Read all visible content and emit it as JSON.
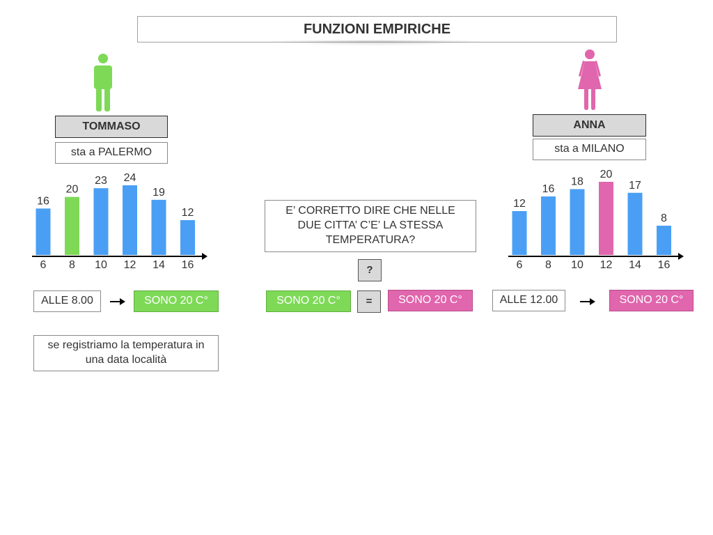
{
  "title": "FUNZIONI EMPIRICHE",
  "left": {
    "name": "TOMMASO",
    "city": "sta a PALERMO",
    "time": "ALLE 8.00",
    "result": "SONO 20 C°",
    "note": "se registriamo la temperatura in una data località",
    "figure_color": "#7ed957"
  },
  "right": {
    "name": "ANNA",
    "city": "sta a MILANO",
    "time": "ALLE 12.00",
    "result": "SONO 20 C°",
    "figure_color": "#e066ad"
  },
  "center": {
    "question": "E’ CORRETTO DIRE CHE NELLE DUE CITTA’ C’E’ LA STESSA TEMPERATURA?",
    "question_mark": "?",
    "left_value": "SONO 20 C°",
    "equals": "=",
    "right_value": "SONO 20 C°"
  },
  "colors": {
    "bar": "#4a9ff5",
    "highlight_left": "#7ed957",
    "highlight_right": "#e066ad"
  },
  "chart_data": [
    {
      "type": "bar",
      "categories": [
        "6",
        "8",
        "10",
        "12",
        "14",
        "16"
      ],
      "values": [
        16,
        20,
        23,
        24,
        19,
        12
      ],
      "highlight_index": 1,
      "highlight_color": "#7ed957",
      "bar_color": "#4a9ff5",
      "ylim": [
        0,
        24
      ]
    },
    {
      "type": "bar",
      "categories": [
        "6",
        "8",
        "10",
        "12",
        "14",
        "16"
      ],
      "values": [
        12,
        16,
        18,
        20,
        17,
        8
      ],
      "highlight_index": 3,
      "highlight_color": "#e066ad",
      "bar_color": "#4a9ff5",
      "ylim": [
        0,
        20
      ]
    }
  ]
}
